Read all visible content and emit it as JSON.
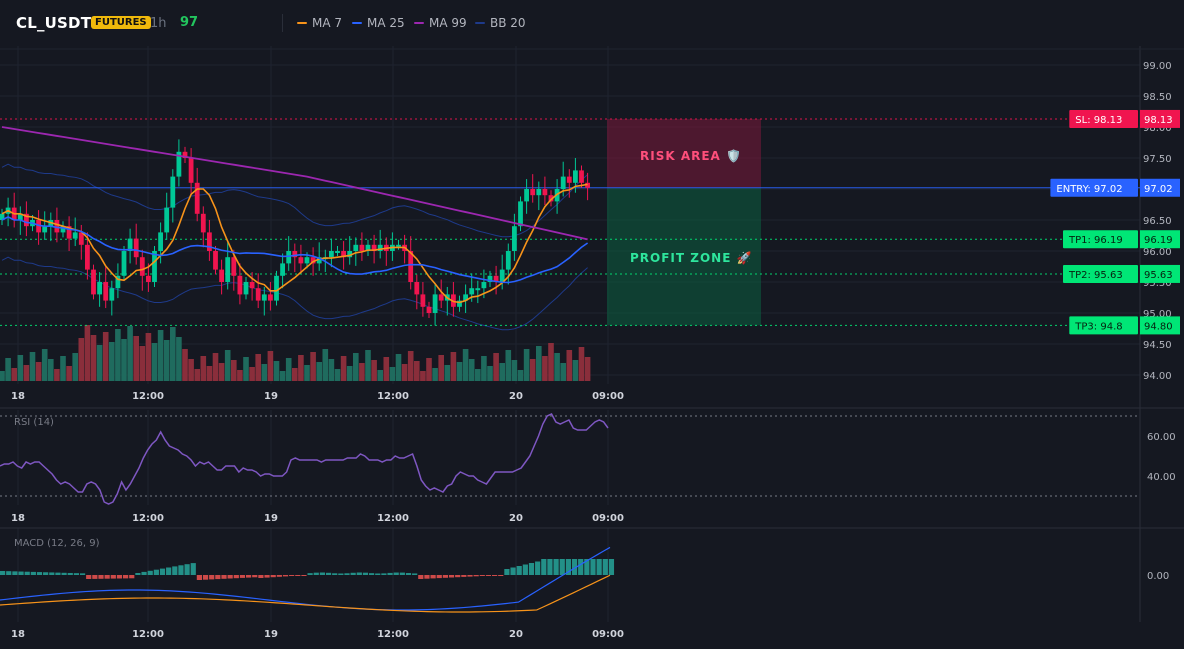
{
  "header": {
    "symbol": "CL_USDT",
    "badge": "FUTURES",
    "timeframe": "1h",
    "count": "97"
  },
  "legend": [
    {
      "label": "MA 7",
      "color": "#f7931a"
    },
    {
      "label": "MA 25",
      "color": "#2962ff"
    },
    {
      "label": "MA 99",
      "color": "#9c27b0"
    },
    {
      "label": "BB 20",
      "color": "#1e3a8a"
    }
  ],
  "price_axis": {
    "ticks": [
      "99.00",
      "98.50",
      "98.00",
      "97.50",
      "97.00",
      "96.50",
      "96.00",
      "95.50",
      "95.00",
      "94.50",
      "94.00"
    ],
    "ylim": [
      94.0,
      99.0
    ]
  },
  "time_axis": [
    "18",
    "12:00",
    "19",
    "12:00",
    "20",
    "09:00"
  ],
  "levels": {
    "sl": {
      "label": "SL: 98.13",
      "value": "98.13",
      "price": 98.13,
      "color": "#f0154f"
    },
    "entry": {
      "label": "ENTRY: 97.02",
      "value": "97.02",
      "price": 97.02,
      "color": "#2962ff"
    },
    "tp1": {
      "label": "TP1: 96.19",
      "value": "96.19",
      "price": 96.19,
      "color": "#00e676"
    },
    "tp2": {
      "label": "TP2: 95.63",
      "value": "95.63",
      "price": 95.63,
      "color": "#00e676"
    },
    "tp3": {
      "label": "TP3: 94.8",
      "value": "94.80",
      "price": 94.8,
      "color": "#00e676"
    }
  },
  "zones": {
    "risk": "RISK AREA 🛡️",
    "profit": "PROFIT ZONE 🚀"
  },
  "rsi": {
    "title": "RSI (14)",
    "ticks": [
      "60.00",
      "40.00"
    ],
    "values": [
      45,
      46,
      46,
      47,
      45,
      44,
      47,
      46,
      47,
      47,
      45,
      43,
      41,
      38,
      36,
      37,
      36,
      34,
      32,
      32,
      36,
      37,
      36,
      33,
      27,
      26,
      27,
      31,
      37,
      33,
      36,
      40,
      44,
      49,
      53,
      56,
      58,
      62,
      58,
      55,
      54,
      53,
      51,
      50,
      48,
      45,
      47,
      46,
      47,
      45,
      43,
      43,
      45,
      45,
      45,
      42,
      44,
      43,
      43,
      42,
      40,
      41,
      41,
      40,
      40,
      40,
      42,
      48,
      49,
      48,
      48,
      48,
      48,
      48,
      47,
      48,
      48,
      48,
      48,
      48,
      49,
      49,
      49,
      51,
      50,
      48,
      48,
      48,
      47,
      48,
      48,
      50,
      49,
      49,
      50,
      51,
      45,
      38,
      35,
      33,
      34,
      33,
      32,
      35,
      36,
      40,
      42,
      41,
      40,
      40,
      38,
      37,
      36,
      39,
      42,
      42,
      42,
      42,
      42,
      43,
      44,
      47,
      50,
      55,
      60,
      66,
      70,
      71,
      67,
      66,
      67,
      68,
      64,
      63,
      63,
      63,
      65,
      67,
      68,
      67,
      64
    ]
  },
  "macd": {
    "title": "MACD (12, 26, 9)",
    "ticks": [
      "0.00"
    ]
  }
}
